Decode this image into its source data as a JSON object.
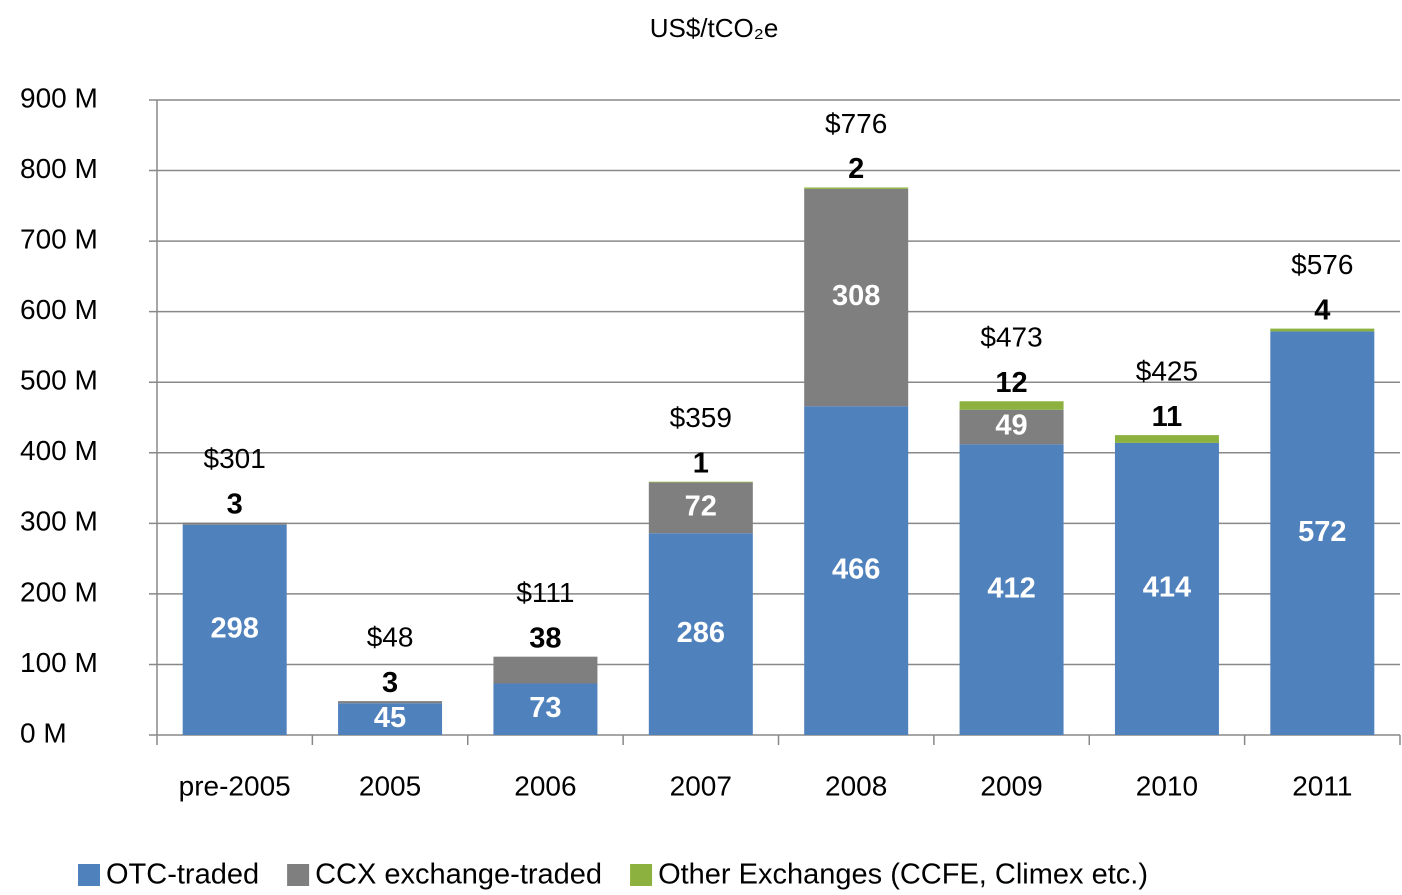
{
  "chart_data": {
    "type": "bar",
    "stacked": true,
    "title": "US$/tCO₂e",
    "categories": [
      "pre-2005",
      "2005",
      "2006",
      "2007",
      "2008",
      "2009",
      "2010",
      "2011"
    ],
    "series": [
      {
        "name": "OTC-traded",
        "color": "#4f81bd",
        "values": [
          298,
          45,
          73,
          286,
          466,
          412,
          414,
          572
        ]
      },
      {
        "name": "CCX exchange-traded",
        "color": "#7f7f7f",
        "values": [
          3,
          3,
          38,
          72,
          308,
          49,
          null,
          null
        ]
      },
      {
        "name": "Other Exchanges (CCFE, Climex etc.)",
        "color": "#8db13f",
        "values": [
          null,
          null,
          null,
          1,
          2,
          12,
          11,
          4
        ]
      }
    ],
    "totals": {
      "values": [
        301,
        48,
        111,
        359,
        776,
        473,
        425,
        576
      ],
      "value_labels": [
        "$301",
        "$48",
        "$111",
        "$359",
        "$776",
        "$473",
        "$425",
        "$576"
      ]
    },
    "ylim": [
      0,
      900
    ],
    "yticks": [
      {
        "value": 0,
        "label": "0 M"
      },
      {
        "value": 100,
        "label": "100 M"
      },
      {
        "value": 200,
        "label": "200 M"
      },
      {
        "value": 300,
        "label": "300 M"
      },
      {
        "value": 400,
        "label": "400 M"
      },
      {
        "value": 500,
        "label": "500 M"
      },
      {
        "value": 600,
        "label": "600 M"
      },
      {
        "value": 700,
        "label": "700 M"
      },
      {
        "value": 800,
        "label": "800 M"
      },
      {
        "value": 900,
        "label": "900 M"
      }
    ],
    "grid": true,
    "legend": "bottom"
  }
}
